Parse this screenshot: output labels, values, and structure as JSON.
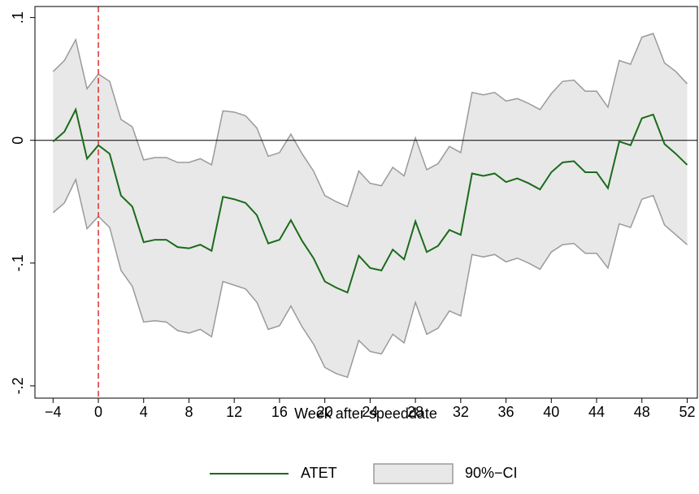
{
  "chart_data": {
    "type": "line",
    "x_label": "Week after speeddate",
    "x": [
      -4,
      -3,
      -2,
      -1,
      0,
      1,
      2,
      3,
      4,
      5,
      6,
      7,
      8,
      9,
      10,
      11,
      12,
      13,
      14,
      15,
      16,
      17,
      18,
      19,
      20,
      21,
      22,
      23,
      24,
      25,
      26,
      27,
      28,
      29,
      30,
      31,
      32,
      33,
      34,
      35,
      36,
      37,
      38,
      39,
      40,
      41,
      42,
      43,
      44,
      45,
      46,
      47,
      48,
      49,
      50,
      51,
      52
    ],
    "series": [
      {
        "name": "ATET",
        "color": "#1a6b1a",
        "values": [
          -0.001,
          0.007,
          0.025,
          -0.015,
          -0.004,
          -0.011,
          -0.045,
          -0.054,
          -0.083,
          -0.081,
          -0.081,
          -0.087,
          -0.088,
          -0.085,
          -0.09,
          -0.046,
          -0.048,
          -0.051,
          -0.061,
          -0.084,
          -0.081,
          -0.065,
          -0.082,
          -0.096,
          -0.115,
          -0.12,
          -0.124,
          -0.094,
          -0.104,
          -0.106,
          -0.089,
          -0.097,
          -0.066,
          -0.091,
          -0.086,
          -0.073,
          -0.077,
          -0.027,
          -0.029,
          -0.027,
          -0.034,
          -0.031,
          -0.035,
          -0.04,
          -0.026,
          -0.018,
          -0.017,
          -0.026,
          -0.026,
          -0.039,
          -0.001,
          -0.004,
          0.018,
          0.021,
          -0.003,
          -0.011,
          -0.02
        ]
      }
    ],
    "band": {
      "name": "90%−CI",
      "color": "#e8e8e8",
      "edge_color": "#9a9a9a",
      "upper": [
        0.056,
        0.065,
        0.082,
        0.042,
        0.054,
        0.048,
        0.017,
        0.011,
        -0.016,
        -0.014,
        -0.014,
        -0.018,
        -0.018,
        -0.015,
        -0.02,
        0.024,
        0.023,
        0.02,
        0.01,
        -0.013,
        -0.01,
        0.005,
        -0.011,
        -0.025,
        -0.045,
        -0.05,
        -0.054,
        -0.025,
        -0.035,
        -0.037,
        -0.022,
        -0.029,
        0.002,
        -0.024,
        -0.019,
        -0.005,
        -0.01,
        0.039,
        0.037,
        0.039,
        0.032,
        0.034,
        0.03,
        0.025,
        0.038,
        0.048,
        0.049,
        0.04,
        0.04,
        0.027,
        0.065,
        0.062,
        0.084,
        0.087,
        0.063,
        0.056,
        0.046
      ],
      "lower": [
        -0.059,
        -0.051,
        -0.032,
        -0.072,
        -0.062,
        -0.071,
        -0.106,
        -0.119,
        -0.148,
        -0.147,
        -0.148,
        -0.155,
        -0.157,
        -0.154,
        -0.16,
        -0.115,
        -0.118,
        -0.121,
        -0.132,
        -0.154,
        -0.151,
        -0.135,
        -0.152,
        -0.166,
        -0.185,
        -0.19,
        -0.193,
        -0.163,
        -0.172,
        -0.174,
        -0.158,
        -0.165,
        -0.132,
        -0.158,
        -0.153,
        -0.139,
        -0.143,
        -0.093,
        -0.095,
        -0.093,
        -0.099,
        -0.096,
        -0.1,
        -0.105,
        -0.091,
        -0.085,
        -0.084,
        -0.092,
        -0.092,
        -0.104,
        -0.068,
        -0.071,
        -0.048,
        -0.045,
        -0.069,
        -0.077,
        -0.085
      ]
    },
    "hline": 0,
    "vline": 0,
    "vline_color": "#e0302a",
    "xlim": [
      -5.6,
      52.9
    ],
    "ylim": [
      -0.21,
      0.109
    ],
    "xticks": [
      {
        "value": -4,
        "label": "−4"
      },
      0,
      4,
      8,
      12,
      16,
      20,
      24,
      28,
      32,
      36,
      40,
      44,
      48,
      52
    ],
    "yticks": [
      {
        "value": -0.2,
        "label": "-.2"
      },
      {
        "value": -0.1,
        "label": "-.1"
      },
      0,
      {
        "value": 0.1,
        "label": ".1"
      }
    ]
  }
}
